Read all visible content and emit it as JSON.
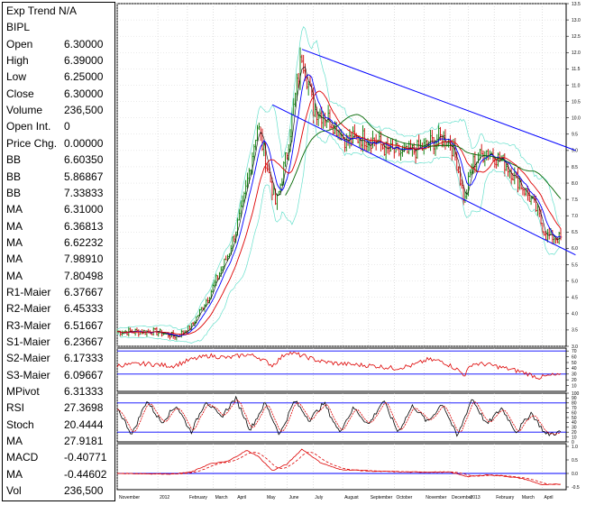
{
  "info": {
    "rows": [
      {
        "label": "Exp Trend N/A",
        "value": ""
      },
      {
        "label": "BIPL",
        "value": ""
      },
      {
        "label": "Open",
        "value": "6.30000"
      },
      {
        "label": "High",
        "value": "6.39000"
      },
      {
        "label": "Low",
        "value": "6.25000"
      },
      {
        "label": "Close",
        "value": "6.30000"
      },
      {
        "label": "Volume",
        "value": "236,500"
      },
      {
        "label": "Open Int.",
        "value": "0"
      },
      {
        "label": "Price Chg.",
        "value": "0.00000"
      },
      {
        "label": "BB",
        "value": "6.60350"
      },
      {
        "label": "BB",
        "value": "5.86867"
      },
      {
        "label": "BB",
        "value": "7.33833"
      },
      {
        "label": "MA",
        "value": "6.31000"
      },
      {
        "label": "MA",
        "value": "6.36813"
      },
      {
        "label": "MA",
        "value": "6.62232"
      },
      {
        "label": "MA",
        "value": "7.98910"
      },
      {
        "label": "MA",
        "value": "7.80498"
      },
      {
        "label": "R1-Maier",
        "value": "6.37667"
      },
      {
        "label": "R2-Maier",
        "value": "6.45333"
      },
      {
        "label": "R3-Maier",
        "value": "6.51667"
      },
      {
        "label": "S1-Maier",
        "value": "6.23667"
      },
      {
        "label": "S2-Maier",
        "value": "6.17333"
      },
      {
        "label": "S3-Maier",
        "value": "6.09667"
      },
      {
        "label": "MPivot",
        "value": "6.31333"
      },
      {
        "label": "RSI",
        "value": "27.3698"
      },
      {
        "label": "Stoch",
        "value": "20.4444"
      },
      {
        "label": "MA",
        "value": "27.9181"
      },
      {
        "label": "MACD",
        "value": "-0.40771"
      },
      {
        "label": "MA",
        "value": "-0.44602"
      },
      {
        "label": "Vol",
        "value": "236,500"
      }
    ]
  },
  "colors": {
    "price_up": "#007a00",
    "price_down": "#cc0000",
    "ma_fast": "#000000",
    "ma_blue": "#0000ff",
    "ma_red": "#dd0000",
    "ma_green": "#006600",
    "bollinger": "#66e0cc",
    "trend_channel": "#0000ff",
    "rsi": "#dd0000",
    "stoch_k": "#000000",
    "stoch_d": "#dd0000",
    "macd": "#dd0000",
    "signal_line": "#0000ff"
  },
  "chart_data": [
    {
      "type": "line",
      "panel": "price",
      "ylim": [
        3.0,
        13.5
      ],
      "y_ticks": [
        3.0,
        3.5,
        4.0,
        4.5,
        5.0,
        5.5,
        6.0,
        6.5,
        7.0,
        7.5,
        8.0,
        8.5,
        9.0,
        9.5,
        10.0,
        10.5,
        11.0,
        11.5,
        12.0,
        12.5,
        13.0,
        13.5
      ],
      "y_tick_labels": [
        "3.0",
        "3.5",
        "4.0",
        "4.5",
        "5.0",
        "5.5",
        "6.0",
        "6.5",
        "7.0",
        "7.5",
        "8.0",
        "8.5",
        "9.0",
        "9.5",
        "10.0",
        "10.5",
        "11.0",
        "11.5",
        "12.0",
        "12.5",
        "13.0",
        "13.5"
      ],
      "x_labels": [
        "November",
        "2012",
        "February",
        "March",
        "April",
        "May",
        "June",
        "July",
        "August",
        "September",
        "October",
        "November",
        "December",
        "2013",
        "February",
        "March",
        "April"
      ],
      "x_label_positions": [
        0.0,
        0.11,
        0.19,
        0.26,
        0.32,
        0.4,
        0.46,
        0.53,
        0.61,
        0.68,
        0.75,
        0.83,
        0.9,
        0.95,
        1.02,
        1.09,
        1.15
      ],
      "close_anchors": [
        [
          0.0,
          3.45
        ],
        [
          0.1,
          3.45
        ],
        [
          0.16,
          3.3
        ],
        [
          0.2,
          3.6
        ],
        [
          0.25,
          4.6
        ],
        [
          0.3,
          5.8
        ],
        [
          0.34,
          7.3
        ],
        [
          0.38,
          9.8
        ],
        [
          0.4,
          8.8
        ],
        [
          0.43,
          7.3
        ],
        [
          0.46,
          9.0
        ],
        [
          0.5,
          12.0
        ],
        [
          0.53,
          10.3
        ],
        [
          0.58,
          9.9
        ],
        [
          0.62,
          9.3
        ],
        [
          0.66,
          9.4
        ],
        [
          0.7,
          9.3
        ],
        [
          0.73,
          9.0
        ],
        [
          0.78,
          8.9
        ],
        [
          0.83,
          9.1
        ],
        [
          0.87,
          9.4
        ],
        [
          0.9,
          9.3
        ],
        [
          0.92,
          8.6
        ],
        [
          0.94,
          7.4
        ],
        [
          0.96,
          8.6
        ],
        [
          1.0,
          9.0
        ],
        [
          1.05,
          8.6
        ],
        [
          1.09,
          8.0
        ],
        [
          1.13,
          7.3
        ],
        [
          1.16,
          6.4
        ],
        [
          1.2,
          6.3
        ]
      ],
      "series": [
        {
          "name": "MA",
          "role": "ma_fast",
          "smooth": 3
        },
        {
          "name": "MA",
          "role": "ma_blue",
          "smooth": 7
        },
        {
          "name": "MA",
          "role": "ma_red",
          "smooth": 16
        },
        {
          "name": "MA",
          "role": "ma_green",
          "smooth": 40
        },
        {
          "name": "BB",
          "role": "bollinger"
        }
      ],
      "trend_channel": {
        "upper": [
          [
            0.5,
            12.1
          ],
          [
            1.24,
            9.0
          ]
        ],
        "lower": [
          [
            0.42,
            10.4
          ],
          [
            1.24,
            5.8
          ]
        ]
      }
    },
    {
      "type": "line",
      "panel": "RSI",
      "ylim": [
        0,
        75
      ],
      "y_ticks": [
        10,
        20,
        30,
        40,
        50,
        60,
        70
      ],
      "y_tick_labels": [
        "10",
        "20",
        "30",
        "40",
        "50",
        "60",
        "70"
      ],
      "reference_lines": [
        70,
        30
      ],
      "anchors": [
        [
          0.0,
          45
        ],
        [
          0.08,
          48
        ],
        [
          0.15,
          44
        ],
        [
          0.2,
          55
        ],
        [
          0.25,
          62
        ],
        [
          0.3,
          58
        ],
        [
          0.35,
          64
        ],
        [
          0.38,
          60
        ],
        [
          0.42,
          45
        ],
        [
          0.46,
          68
        ],
        [
          0.5,
          62
        ],
        [
          0.55,
          52
        ],
        [
          0.6,
          48
        ],
        [
          0.65,
          46
        ],
        [
          0.7,
          44
        ],
        [
          0.75,
          40
        ],
        [
          0.8,
          45
        ],
        [
          0.84,
          55
        ],
        [
          0.88,
          52
        ],
        [
          0.92,
          38
        ],
        [
          0.94,
          28
        ],
        [
          0.96,
          48
        ],
        [
          1.0,
          47
        ],
        [
          1.05,
          40
        ],
        [
          1.1,
          33
        ],
        [
          1.14,
          24
        ],
        [
          1.18,
          28
        ],
        [
          1.2,
          27
        ]
      ]
    },
    {
      "type": "line",
      "panel": "Stochastic",
      "ylim": [
        0,
        100
      ],
      "y_ticks": [
        0,
        10,
        20,
        30,
        40,
        50,
        60,
        70,
        80,
        90,
        100
      ],
      "y_tick_labels": [
        "0",
        "10",
        "20",
        "30",
        "40",
        "50",
        "60",
        "70",
        "80",
        "90",
        "100"
      ],
      "reference_lines": [
        80,
        20
      ],
      "anchors": [
        [
          0.0,
          70
        ],
        [
          0.04,
          15
        ],
        [
          0.08,
          85
        ],
        [
          0.12,
          40
        ],
        [
          0.16,
          75
        ],
        [
          0.2,
          20
        ],
        [
          0.24,
          85
        ],
        [
          0.28,
          50
        ],
        [
          0.32,
          90
        ],
        [
          0.36,
          25
        ],
        [
          0.4,
          80
        ],
        [
          0.44,
          15
        ],
        [
          0.48,
          85
        ],
        [
          0.52,
          45
        ],
        [
          0.56,
          80
        ],
        [
          0.6,
          20
        ],
        [
          0.64,
          70
        ],
        [
          0.68,
          35
        ],
        [
          0.72,
          85
        ],
        [
          0.76,
          20
        ],
        [
          0.8,
          75
        ],
        [
          0.84,
          40
        ],
        [
          0.88,
          80
        ],
        [
          0.92,
          10
        ],
        [
          0.96,
          90
        ],
        [
          1.0,
          35
        ],
        [
          1.04,
          70
        ],
        [
          1.08,
          20
        ],
        [
          1.12,
          60
        ],
        [
          1.16,
          15
        ],
        [
          1.2,
          20
        ]
      ]
    },
    {
      "type": "line",
      "panel": "MACD",
      "ylim": [
        -0.6,
        1.1
      ],
      "y_ticks": [
        -0.5,
        0.0,
        0.5,
        1.0
      ],
      "y_tick_labels": [
        "-0.5",
        "0.0",
        "0.5",
        "1.0"
      ],
      "reference_lines": [
        0
      ],
      "anchors": [
        [
          0.0,
          0.0
        ],
        [
          0.15,
          -0.02
        ],
        [
          0.2,
          0.05
        ],
        [
          0.25,
          0.35
        ],
        [
          0.3,
          0.45
        ],
        [
          0.35,
          0.85
        ],
        [
          0.38,
          0.65
        ],
        [
          0.42,
          0.1
        ],
        [
          0.46,
          0.35
        ],
        [
          0.5,
          0.9
        ],
        [
          0.55,
          0.4
        ],
        [
          0.6,
          0.15
        ],
        [
          0.7,
          0.08
        ],
        [
          0.8,
          0.05
        ],
        [
          0.9,
          0.05
        ],
        [
          0.95,
          -0.12
        ],
        [
          1.0,
          -0.05
        ],
        [
          1.05,
          -0.1
        ],
        [
          1.1,
          -0.2
        ],
        [
          1.15,
          -0.42
        ],
        [
          1.2,
          -0.4
        ]
      ]
    }
  ]
}
